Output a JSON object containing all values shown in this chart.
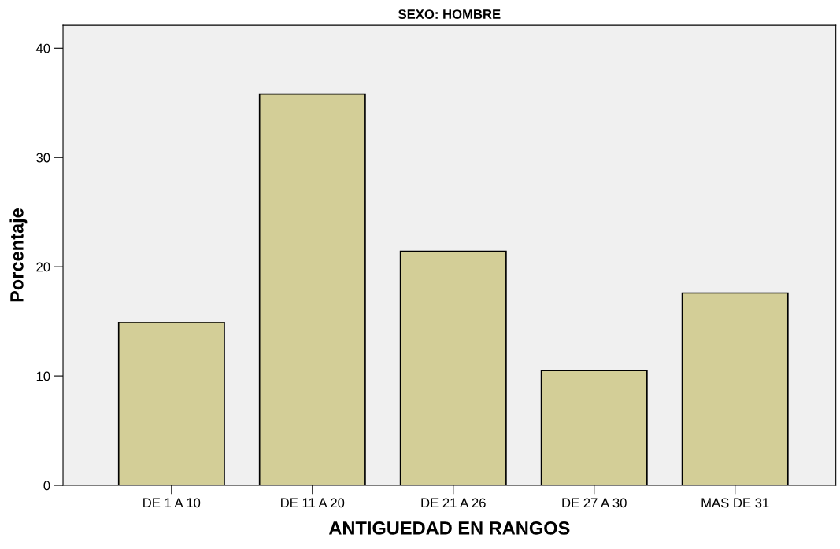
{
  "chart_data": {
    "type": "bar",
    "title": "SEXO: HOMBRE",
    "xlabel": "ANTIGUEDAD EN RANGOS",
    "ylabel": "Porcentaje",
    "categories": [
      "DE 1 A 10",
      "DE 11 A 20",
      "DE 21 A 26",
      "DE 27 A 30",
      "MAS DE 31"
    ],
    "values": [
      14.9,
      35.8,
      21.4,
      10.5,
      17.6
    ],
    "color": "#d3ce97",
    "ylim": [
      0,
      42.1
    ],
    "yticks": [
      0,
      10,
      20,
      30,
      40
    ],
    "grid": false,
    "legend": false
  }
}
